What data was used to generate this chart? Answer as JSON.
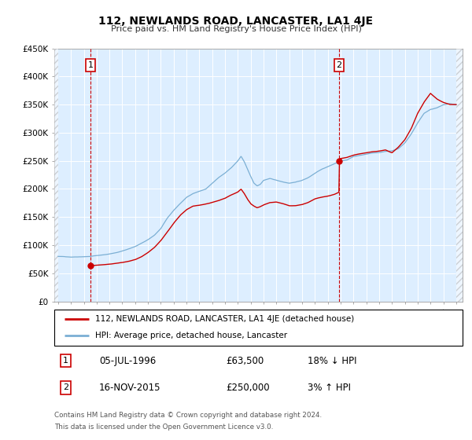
{
  "title": "112, NEWLANDS ROAD, LANCASTER, LA1 4JE",
  "subtitle": "Price paid vs. HM Land Registry's House Price Index (HPI)",
  "ylim": [
    0,
    450000
  ],
  "xlim_start": 1993.7,
  "xlim_end": 2025.5,
  "hpi_color": "#7bafd4",
  "price_color": "#cc0000",
  "bg_color": "#ddeeff",
  "sale1_date": 1996.51,
  "sale1_price": 63500,
  "sale2_date": 2015.88,
  "sale2_price": 250000,
  "legend_line1": "112, NEWLANDS ROAD, LANCASTER, LA1 4JE (detached house)",
  "legend_line2": "HPI: Average price, detached house, Lancaster",
  "sale1_anno": "05-JUL-1996",
  "sale1_price_str": "£63,500",
  "sale1_hpi_str": "18% ↓ HPI",
  "sale2_anno": "16-NOV-2015",
  "sale2_price_str": "£250,000",
  "sale2_hpi_str": "3% ↑ HPI",
  "footer1": "Contains HM Land Registry data © Crown copyright and database right 2024.",
  "footer2": "This data is licensed under the Open Government Licence v3.0.",
  "yticks": [
    0,
    50000,
    100000,
    150000,
    200000,
    250000,
    300000,
    350000,
    400000,
    450000
  ],
  "ytick_labels": [
    "£0",
    "£50K",
    "£100K",
    "£150K",
    "£200K",
    "£250K",
    "£300K",
    "£350K",
    "£400K",
    "£450K"
  ],
  "xticks": [
    1994,
    1995,
    1996,
    1997,
    1998,
    1999,
    2000,
    2001,
    2002,
    2003,
    2004,
    2005,
    2006,
    2007,
    2008,
    2009,
    2010,
    2011,
    2012,
    2013,
    2014,
    2015,
    2016,
    2017,
    2018,
    2019,
    2020,
    2021,
    2022,
    2023,
    2024,
    2025
  ]
}
